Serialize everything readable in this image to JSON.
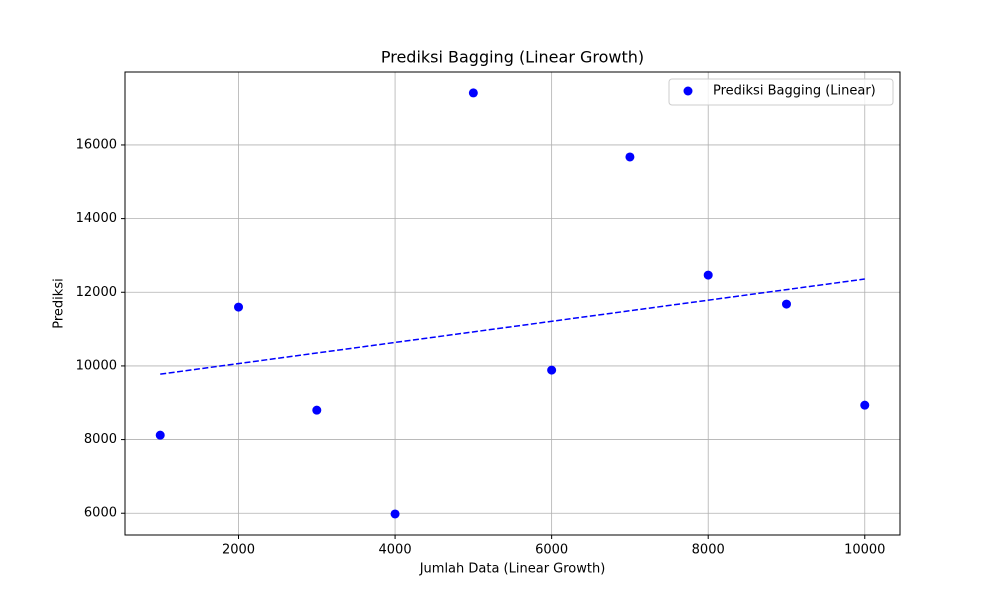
{
  "chart_data": {
    "type": "scatter",
    "title": "Prediksi Bagging (Linear Growth)",
    "x_label": "Jumlah Data (Linear Growth)",
    "y_label": "Prediksi",
    "x": [
      1000,
      2000,
      3000,
      4000,
      5000,
      6000,
      7000,
      8000,
      9000,
      10000
    ],
    "series": [
      {
        "name": "Prediksi Bagging (Linear)",
        "color": "#0000ff",
        "values": [
          8120,
          11598,
          8799,
          5980,
          17413,
          9886,
          15674,
          12467,
          11679,
          8935
        ]
      }
    ],
    "trend": {
      "x": [
        1000,
        10000
      ],
      "values": [
        9777,
        12359
      ],
      "color": "#0000ff",
      "style": "dashed"
    },
    "xlim": [
      550,
      10450
    ],
    "ylim": [
      5409,
      17981
    ],
    "xticks": [
      2000,
      4000,
      6000,
      8000,
      10000
    ],
    "yticks": [
      6000,
      8000,
      10000,
      12000,
      14000,
      16000
    ],
    "grid": true,
    "legend": "upper right"
  }
}
